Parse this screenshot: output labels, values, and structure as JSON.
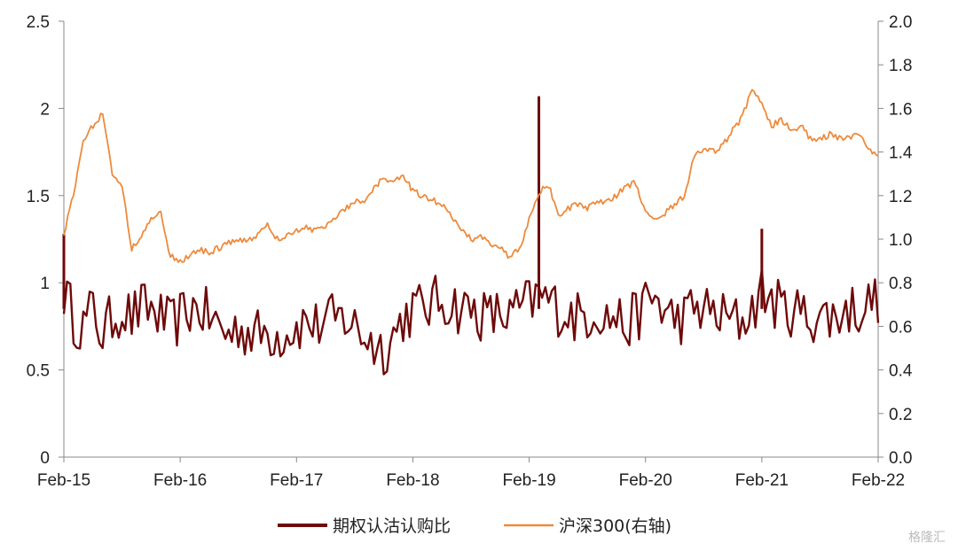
{
  "chart_data": {
    "type": "line",
    "title": "",
    "x_ticks": [
      "Feb-15",
      "Feb-16",
      "Feb-17",
      "Feb-18",
      "Feb-19",
      "Feb-20",
      "Feb-21",
      "Feb-22"
    ],
    "left_axis": {
      "ylim": [
        0,
        2.5
      ],
      "ticks": [
        "0",
        "0.5",
        "1",
        "1.5",
        "2",
        "2.5"
      ]
    },
    "right_axis": {
      "ylim": [
        0,
        2.0
      ],
      "ticks": [
        "0.0",
        "0.2",
        "0.4",
        "0.6",
        "0.8",
        "1.0",
        "1.2",
        "1.4",
        "1.6",
        "1.8",
        "2.0"
      ]
    },
    "grid": false,
    "legend_position": "bottom-center",
    "series": [
      {
        "name": "期权认沽认购比",
        "axis": "left",
        "color": "#6e0a0a",
        "x": [
          "2015-02",
          "2015-03",
          "2015-04",
          "2015-05",
          "2015-06",
          "2015-07",
          "2015-08",
          "2015-09",
          "2015-10",
          "2015-11",
          "2015-12",
          "2016-01",
          "2016-02",
          "2016-03",
          "2016-04",
          "2016-05",
          "2016-06",
          "2016-07",
          "2016-08",
          "2016-09",
          "2016-10",
          "2016-11",
          "2016-12",
          "2017-01",
          "2017-02",
          "2017-03",
          "2017-04",
          "2017-05",
          "2017-06",
          "2017-07",
          "2017-08",
          "2017-09",
          "2017-10",
          "2017-11",
          "2017-12",
          "2018-01",
          "2018-02",
          "2018-03",
          "2018-04",
          "2018-05",
          "2018-06",
          "2018-07",
          "2018-08",
          "2018-09",
          "2018-10",
          "2018-11",
          "2018-12",
          "2019-01",
          "2019-02",
          "2019-03",
          "2019-04",
          "2019-05",
          "2019-06",
          "2019-07",
          "2019-08",
          "2019-09",
          "2019-10",
          "2019-11",
          "2019-12",
          "2020-01",
          "2020-02",
          "2020-03",
          "2020-04",
          "2020-05",
          "2020-06",
          "2020-07",
          "2020-08",
          "2020-09",
          "2020-10",
          "2020-11",
          "2020-12",
          "2021-01",
          "2021-02",
          "2021-03",
          "2021-04",
          "2021-05",
          "2021-06",
          "2021-07",
          "2021-08",
          "2021-09",
          "2021-10",
          "2021-11",
          "2021-12",
          "2022-01",
          "2022-02"
        ],
        "y": [
          0.95,
          0.8,
          0.75,
          0.85,
          0.7,
          0.8,
          0.85,
          0.8,
          0.85,
          0.85,
          0.8,
          0.75,
          0.8,
          0.85,
          0.85,
          0.8,
          0.75,
          0.7,
          0.75,
          0.72,
          0.7,
          0.72,
          0.7,
          0.72,
          0.75,
          0.78,
          0.75,
          0.78,
          0.78,
          0.8,
          0.75,
          0.7,
          0.65,
          0.62,
          0.7,
          0.8,
          0.85,
          0.85,
          0.88,
          0.9,
          0.88,
          0.85,
          0.85,
          0.82,
          0.8,
          0.82,
          0.8,
          0.85,
          0.88,
          0.92,
          0.9,
          0.85,
          0.82,
          0.8,
          0.82,
          0.85,
          0.8,
          0.8,
          0.75,
          0.8,
          0.88,
          0.92,
          0.82,
          0.8,
          0.8,
          0.85,
          0.85,
          0.82,
          0.8,
          0.78,
          0.78,
          0.85,
          0.95,
          0.9,
          0.85,
          0.85,
          0.82,
          0.8,
          0.82,
          0.8,
          0.82,
          0.85,
          0.85,
          0.88,
          0.92
        ],
        "spikes": [
          {
            "x": "2019-03",
            "y": 2.07
          },
          {
            "x": "2021-02",
            "y": 1.31
          },
          {
            "x": "2015-02",
            "y": 1.28
          }
        ]
      },
      {
        "name": "沪深300(右轴)",
        "axis": "right",
        "color": "#ed8a3c",
        "x": [
          "2015-02",
          "2015-03",
          "2015-04",
          "2015-05",
          "2015-06",
          "2015-07",
          "2015-08",
          "2015-09",
          "2015-10",
          "2015-11",
          "2015-12",
          "2016-01",
          "2016-02",
          "2016-03",
          "2016-04",
          "2016-05",
          "2016-06",
          "2016-07",
          "2016-08",
          "2016-09",
          "2016-10",
          "2016-11",
          "2016-12",
          "2017-01",
          "2017-02",
          "2017-03",
          "2017-04",
          "2017-05",
          "2017-06",
          "2017-07",
          "2017-08",
          "2017-09",
          "2017-10",
          "2017-11",
          "2017-12",
          "2018-01",
          "2018-02",
          "2018-03",
          "2018-04",
          "2018-05",
          "2018-06",
          "2018-07",
          "2018-08",
          "2018-09",
          "2018-10",
          "2018-11",
          "2018-12",
          "2019-01",
          "2019-02",
          "2019-03",
          "2019-04",
          "2019-05",
          "2019-06",
          "2019-07",
          "2019-08",
          "2019-09",
          "2019-10",
          "2019-11",
          "2019-12",
          "2020-01",
          "2020-02",
          "2020-03",
          "2020-04",
          "2020-05",
          "2020-06",
          "2020-07",
          "2020-08",
          "2020-09",
          "2020-10",
          "2020-11",
          "2020-12",
          "2021-01",
          "2021-02",
          "2021-03",
          "2021-04",
          "2021-05",
          "2021-06",
          "2021-07",
          "2021-08",
          "2021-09",
          "2021-10",
          "2021-11",
          "2021-12",
          "2022-01",
          "2022-02"
        ],
        "y": [
          1.03,
          1.2,
          1.45,
          1.52,
          1.58,
          1.3,
          1.25,
          0.95,
          1.02,
          1.1,
          1.12,
          0.92,
          0.9,
          0.92,
          0.95,
          0.94,
          0.96,
          0.98,
          1.0,
          1.0,
          1.02,
          1.06,
          1.0,
          1.02,
          1.04,
          1.05,
          1.04,
          1.06,
          1.1,
          1.14,
          1.17,
          1.18,
          1.24,
          1.28,
          1.26,
          1.3,
          1.22,
          1.2,
          1.18,
          1.16,
          1.1,
          1.05,
          1.0,
          1.02,
          0.98,
          0.96,
          0.92,
          0.95,
          1.1,
          1.22,
          1.25,
          1.1,
          1.14,
          1.16,
          1.14,
          1.18,
          1.17,
          1.2,
          1.24,
          1.26,
          1.12,
          1.1,
          1.12,
          1.16,
          1.2,
          1.38,
          1.42,
          1.4,
          1.43,
          1.5,
          1.56,
          1.7,
          1.62,
          1.52,
          1.55,
          1.5,
          1.52,
          1.46,
          1.46,
          1.48,
          1.46,
          1.46,
          1.48,
          1.42,
          1.38
        ]
      }
    ]
  },
  "watermark": "格隆汇"
}
